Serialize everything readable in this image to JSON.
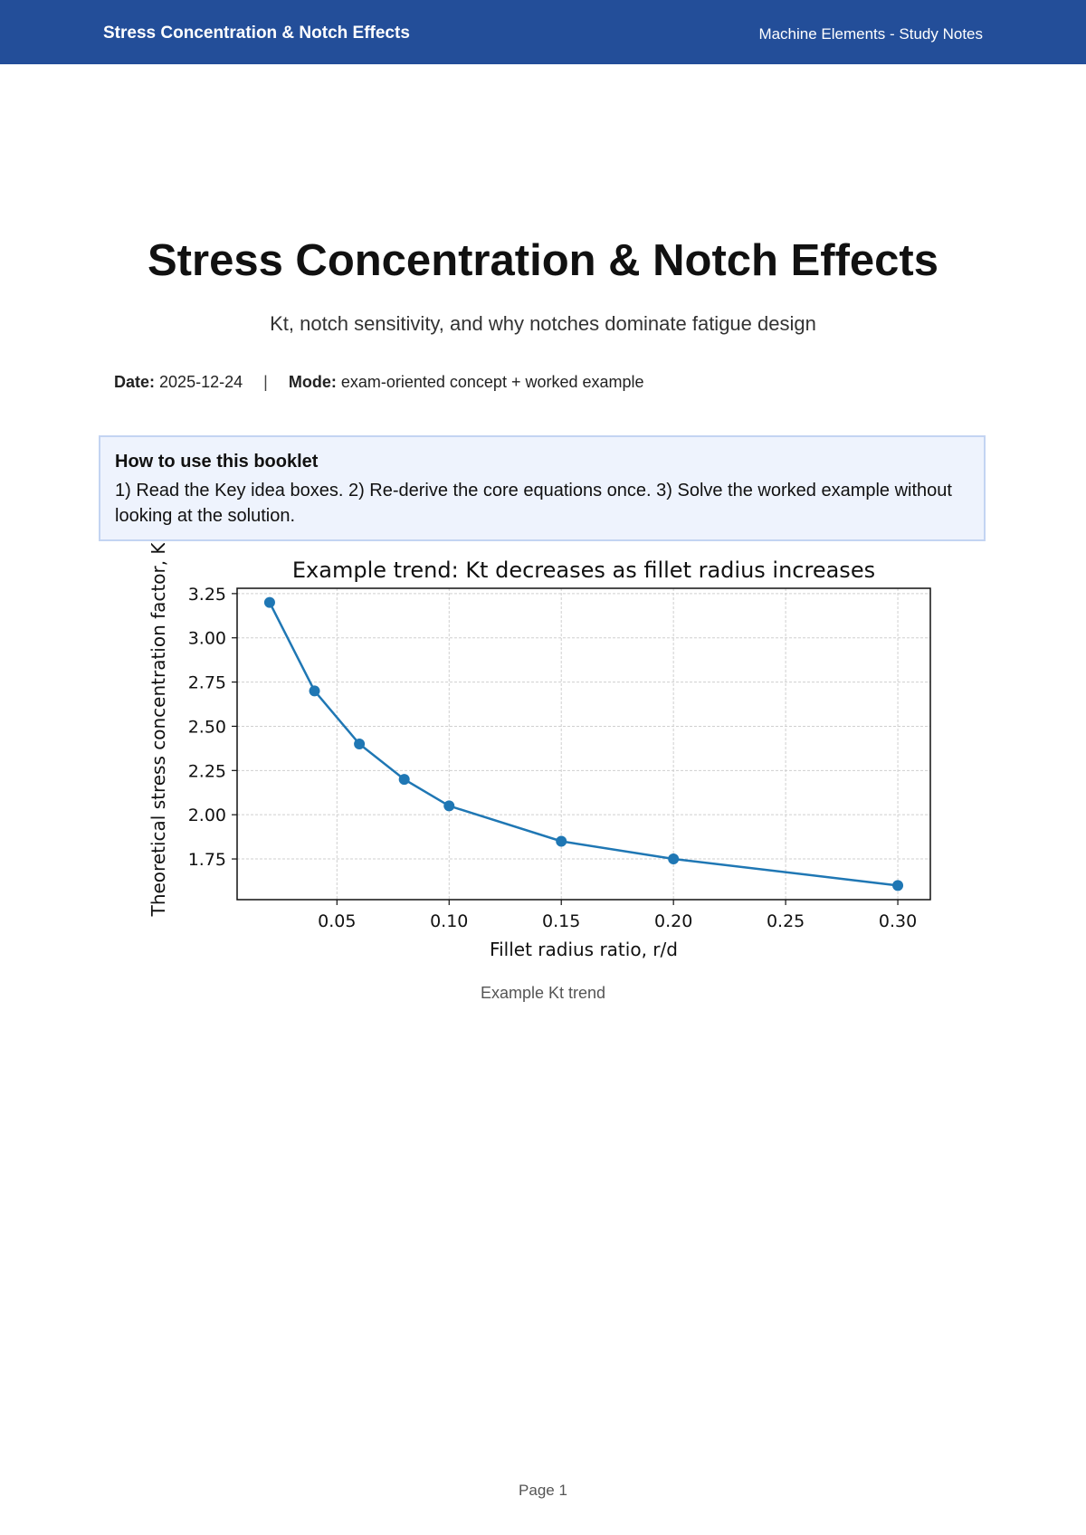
{
  "header": {
    "title": "Stress Concentration & Notch Effects",
    "right": "Machine Elements - Study Notes"
  },
  "document": {
    "title": "Stress Concentration & Notch Effects",
    "subtitle": "Kt, notch sensitivity, and why notches dominate fatigue design",
    "date_label": "Date:",
    "date_value": "2025-12-24",
    "separator": "|",
    "mode_label": "Mode:",
    "mode_value": "exam-oriented concept + worked example"
  },
  "info_box": {
    "title": "How to use this booklet",
    "text": "1) Read the Key idea boxes. 2) Re-derive the core equations once. 3) Solve the worked example without looking at the solution."
  },
  "figure": {
    "caption": "Example Kt trend"
  },
  "footer": {
    "page": "Page 1"
  },
  "chart_data": {
    "type": "line",
    "title": "Example trend: Kt decreases as fillet radius increases",
    "xlabel": "Fillet radius ratio, r/d",
    "ylabel": "Theoretical stress concentration factor, Kt",
    "x": [
      0.02,
      0.04,
      0.06,
      0.08,
      0.1,
      0.15,
      0.2,
      0.3
    ],
    "series": [
      {
        "values": [
          3.2,
          2.7,
          2.4,
          2.2,
          2.05,
          1.85,
          1.75,
          1.6
        ],
        "color": "#1f77b4"
      }
    ],
    "xlim": [
      0.0055,
      0.3145
    ],
    "ylim": [
      1.52,
      3.28
    ],
    "xticks": [
      "0.05",
      "0.10",
      "0.15",
      "0.20",
      "0.25",
      "0.30"
    ],
    "yticks": [
      "1.75",
      "2.00",
      "2.25",
      "2.50",
      "2.75",
      "3.00",
      "3.25"
    ],
    "grid": true,
    "marker": "circle"
  }
}
